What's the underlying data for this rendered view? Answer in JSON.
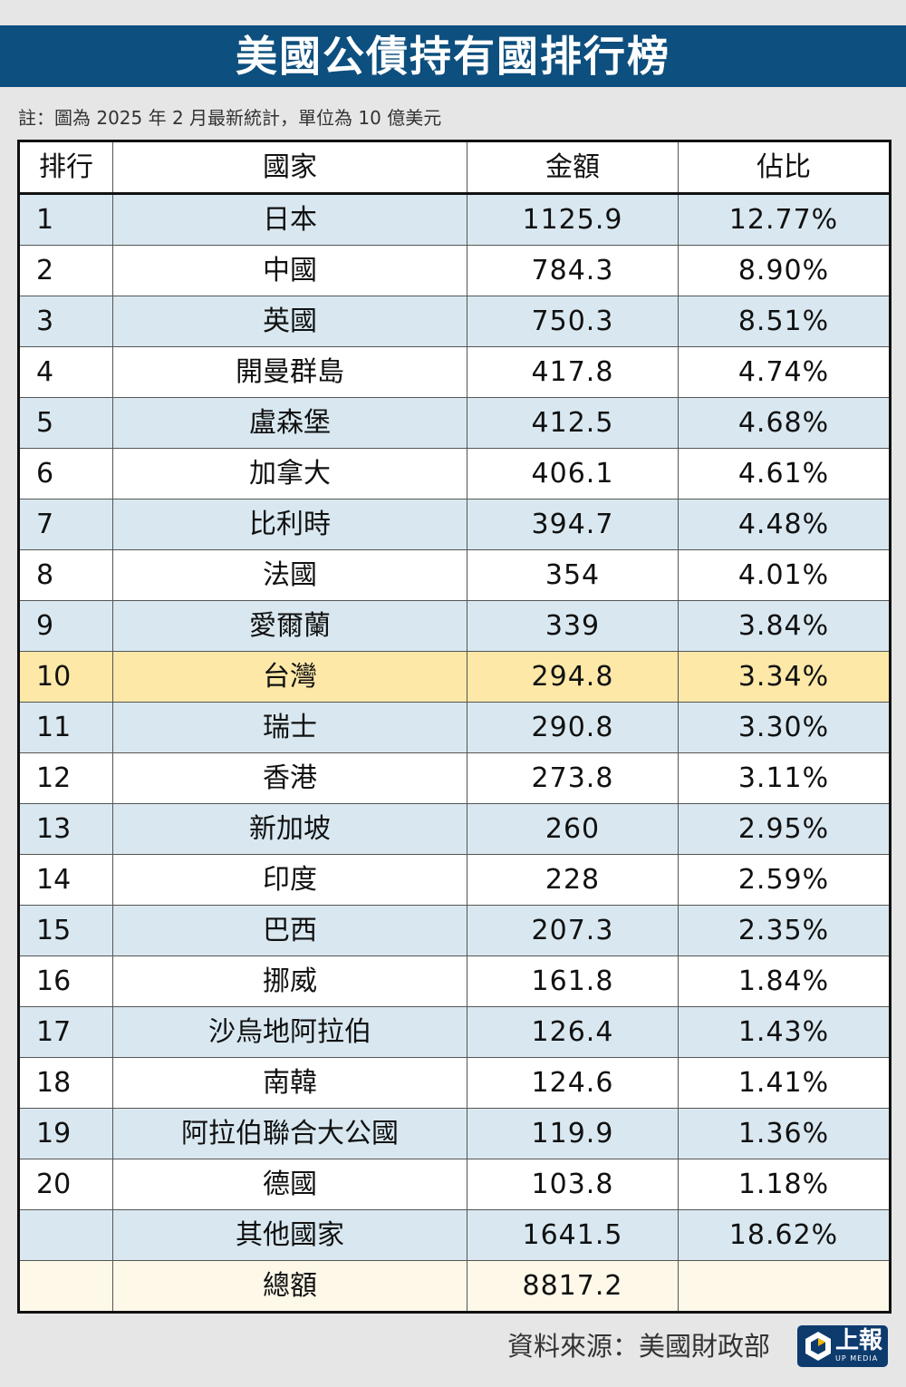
{
  "title": "美國公債持有國排行榜",
  "note": "註：圖為 2025 年 2 月最新統計，單位為 10 億美元",
  "source": "資料來源：美國財政部",
  "logo": {
    "text": "上報",
    "sub": "UP MEDIA"
  },
  "colors": {
    "title_bg": "#0d4f7e",
    "row_alt": "#d9e8f0",
    "highlight": "#fde8a8",
    "total_row": "#fdf8e8"
  },
  "chart_data": {
    "type": "table",
    "columns": [
      "排行",
      "國家",
      "金額",
      "佔比"
    ],
    "rows": [
      [
        "1",
        "日本",
        "1125.9",
        "12.77%"
      ],
      [
        "2",
        "中國",
        "784.3",
        "8.90%"
      ],
      [
        "3",
        "英國",
        "750.3",
        "8.51%"
      ],
      [
        "4",
        "開曼群島",
        "417.8",
        "4.74%"
      ],
      [
        "5",
        "盧森堡",
        "412.5",
        "4.68%"
      ],
      [
        "6",
        "加拿大",
        "406.1",
        "4.61%"
      ],
      [
        "7",
        "比利時",
        "394.7",
        "4.48%"
      ],
      [
        "8",
        "法國",
        "354",
        "4.01%"
      ],
      [
        "9",
        "愛爾蘭",
        "339",
        "3.84%"
      ],
      [
        "10",
        "台灣",
        "294.8",
        "3.34%"
      ],
      [
        "11",
        "瑞士",
        "290.8",
        "3.30%"
      ],
      [
        "12",
        "香港",
        "273.8",
        "3.11%"
      ],
      [
        "13",
        "新加坡",
        "260",
        "2.95%"
      ],
      [
        "14",
        "印度",
        "228",
        "2.59%"
      ],
      [
        "15",
        "巴西",
        "207.3",
        "2.35%"
      ],
      [
        "16",
        "挪威",
        "161.8",
        "1.84%"
      ],
      [
        "17",
        "沙烏地阿拉伯",
        "126.4",
        "1.43%"
      ],
      [
        "18",
        "南韓",
        "124.6",
        "1.41%"
      ],
      [
        "19",
        "阿拉伯聯合大公國",
        "119.9",
        "1.36%"
      ],
      [
        "20",
        "德國",
        "103.8",
        "1.18%"
      ],
      [
        "",
        "其他國家",
        "1641.5",
        "18.62%"
      ],
      [
        "",
        "總額",
        "8817.2",
        ""
      ]
    ],
    "highlight_row": "台灣"
  }
}
